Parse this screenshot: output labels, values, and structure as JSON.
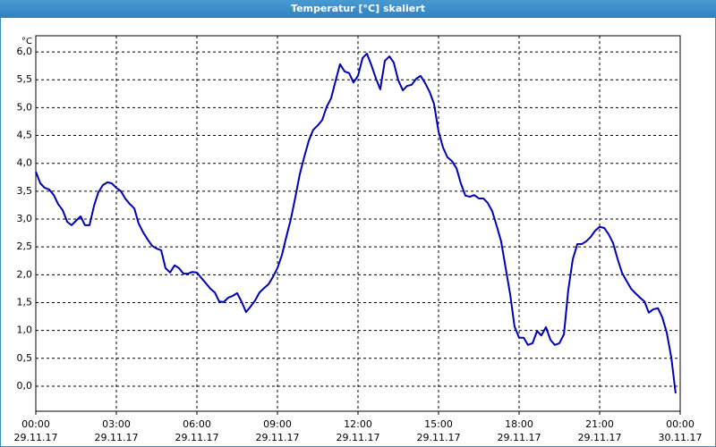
{
  "chart_data": {
    "type": "line",
    "title": "Temperatur [°C] skaliert",
    "y_unit": "°C",
    "x": [
      0,
      0.17,
      0.33,
      0.5,
      0.67,
      0.83,
      1,
      1.17,
      1.33,
      1.5,
      1.67,
      1.83,
      2,
      2.17,
      2.33,
      2.5,
      2.67,
      2.83,
      3,
      3.17,
      3.33,
      3.5,
      3.67,
      3.83,
      4,
      4.17,
      4.33,
      4.5,
      4.67,
      4.83,
      5,
      5.17,
      5.33,
      5.5,
      5.67,
      5.83,
      6,
      6.17,
      6.33,
      6.5,
      6.67,
      6.83,
      7,
      7.17,
      7.33,
      7.5,
      7.67,
      7.83,
      8,
      8.17,
      8.33,
      8.5,
      8.67,
      8.83,
      9,
      9.17,
      9.33,
      9.5,
      9.67,
      9.83,
      10,
      10.17,
      10.33,
      10.5,
      10.67,
      10.83,
      11,
      11.17,
      11.33,
      11.5,
      11.67,
      11.83,
      12,
      12.17,
      12.33,
      12.5,
      12.67,
      12.83,
      13,
      13.17,
      13.33,
      13.5,
      13.67,
      13.83,
      14,
      14.17,
      14.33,
      14.5,
      14.67,
      14.83,
      15,
      15.17,
      15.33,
      15.5,
      15.67,
      15.83,
      16,
      16.17,
      16.33,
      16.5,
      16.67,
      16.83,
      17,
      17.17,
      17.33,
      17.5,
      17.67,
      17.83,
      18,
      18.17,
      18.33,
      18.5,
      18.67,
      18.83,
      19,
      19.17,
      19.33,
      19.5,
      19.67,
      19.83,
      20,
      20.17,
      20.33,
      20.5,
      20.67,
      20.83,
      21,
      21.17,
      21.33,
      21.5,
      21.67,
      21.83,
      22,
      22.17,
      22.33,
      22.5,
      22.67,
      22.83,
      23,
      23.17,
      23.33,
      23.5,
      23.67,
      23.83
    ],
    "series": [
      {
        "name": "Temperatur",
        "color": "#0000b4",
        "values": [
          3.85,
          3.64,
          3.56,
          3.53,
          3.43,
          3.27,
          3.16,
          2.95,
          2.89,
          2.97,
          3.05,
          2.89,
          2.89,
          3.24,
          3.48,
          3.61,
          3.66,
          3.64,
          3.56,
          3.5,
          3.37,
          3.27,
          3.19,
          2.92,
          2.76,
          2.63,
          2.52,
          2.47,
          2.44,
          2.12,
          2.04,
          2.17,
          2.12,
          2.02,
          2.02,
          2.05,
          2.04,
          1.94,
          1.85,
          1.75,
          1.68,
          1.52,
          1.51,
          1.59,
          1.62,
          1.67,
          1.51,
          1.33,
          1.43,
          1.54,
          1.68,
          1.76,
          1.83,
          1.96,
          2.12,
          2.36,
          2.68,
          3.0,
          3.4,
          3.8,
          4.12,
          4.41,
          4.6,
          4.68,
          4.78,
          5.01,
          5.17,
          5.49,
          5.78,
          5.65,
          5.62,
          5.45,
          5.57,
          5.89,
          5.97,
          5.76,
          5.52,
          5.33,
          5.84,
          5.92,
          5.81,
          5.49,
          5.31,
          5.39,
          5.41,
          5.52,
          5.57,
          5.44,
          5.28,
          5.07,
          4.57,
          4.28,
          4.11,
          4.04,
          3.91,
          3.64,
          3.42,
          3.4,
          3.43,
          3.37,
          3.37,
          3.29,
          3.14,
          2.87,
          2.6,
          2.12,
          1.64,
          1.07,
          0.87,
          0.87,
          0.74,
          0.77,
          0.99,
          0.91,
          1.06,
          0.83,
          0.74,
          0.77,
          0.93,
          1.72,
          2.28,
          2.55,
          2.55,
          2.6,
          2.68,
          2.79,
          2.86,
          2.84,
          2.73,
          2.57,
          2.28,
          2.04,
          1.89,
          1.75,
          1.67,
          1.59,
          1.52,
          1.32,
          1.38,
          1.4,
          1.24,
          0.96,
          0.51,
          -0.13
        ]
      }
    ],
    "xlim": [
      0,
      24
    ],
    "xticks": [
      {
        "value": 0,
        "label": "00:00"
      },
      {
        "value": 3,
        "label": "03:00"
      },
      {
        "value": 6,
        "label": "06:00"
      },
      {
        "value": 9,
        "label": "09:00"
      },
      {
        "value": 12,
        "label": "12:00"
      },
      {
        "value": 15,
        "label": "15:00"
      },
      {
        "value": 18,
        "label": "18:00"
      },
      {
        "value": 21,
        "label": "21:00"
      },
      {
        "value": 24,
        "label": "00:00"
      }
    ],
    "xtick_dates": [
      "29.11.17",
      "29.11.17",
      "29.11.17",
      "29.11.17",
      "29.11.17",
      "29.11.17",
      "29.11.17",
      "29.11.17",
      "30.11.17"
    ],
    "ylim": [
      -0.45,
      6.29
    ],
    "yticks": [
      {
        "value": 0,
        "label": "0,0"
      },
      {
        "value": 0.5,
        "label": "0,5"
      },
      {
        "value": 1,
        "label": "1,0"
      },
      {
        "value": 1.5,
        "label": "1,5"
      },
      {
        "value": 2,
        "label": "2,0"
      },
      {
        "value": 2.5,
        "label": "2,5"
      },
      {
        "value": 3,
        "label": "3,0"
      },
      {
        "value": 3.5,
        "label": "3,5"
      },
      {
        "value": 4,
        "label": "4,0"
      },
      {
        "value": 4.5,
        "label": "4,5"
      },
      {
        "value": 5,
        "label": "5,0"
      },
      {
        "value": 5.5,
        "label": "5,5"
      },
      {
        "value": 6,
        "label": "6,0"
      }
    ],
    "grid": true
  }
}
